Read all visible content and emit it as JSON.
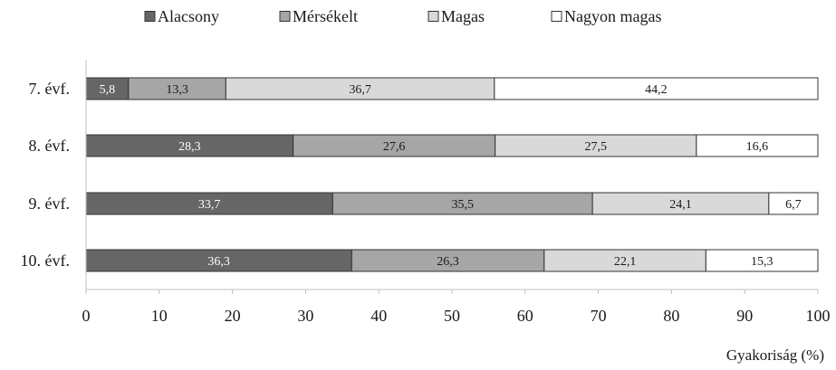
{
  "chart_data": {
    "type": "bar",
    "orientation": "horizontal",
    "stacked": true,
    "title": "",
    "xlabel": "Gyakoriság (%)",
    "ylabel": "",
    "xlim": [
      0,
      100
    ],
    "x_ticks": [
      "0",
      "10",
      "20",
      "30",
      "40",
      "50",
      "60",
      "70",
      "80",
      "90",
      "100"
    ],
    "grid": false,
    "legend_position": "top",
    "categories": [
      "7. évf.",
      "8. évf.",
      "9. évf.",
      "10. évf."
    ],
    "series": [
      {
        "name": "Alacsony",
        "color": "#666666",
        "label_color": "#ffffff",
        "values": [
          5.8,
          28.3,
          33.7,
          36.3
        ],
        "labels": [
          "5,8",
          "28,3",
          "33,7",
          "36,3"
        ]
      },
      {
        "name": "Mérsékelt",
        "color": "#a6a6a6",
        "label_color": "#1a1a1a",
        "values": [
          13.3,
          27.6,
          35.5,
          26.3
        ],
        "labels": [
          "13,3",
          "27,6",
          "35,5",
          "26,3"
        ]
      },
      {
        "name": "Magas",
        "color": "#d9d9d9",
        "label_color": "#1a1a1a",
        "values": [
          36.7,
          27.5,
          24.1,
          22.1
        ],
        "labels": [
          "36,7",
          "27,5",
          "24,1",
          "22,1"
        ]
      },
      {
        "name": "Nagyon magas",
        "color": "#ffffff",
        "label_color": "#1a1a1a",
        "values": [
          44.2,
          16.6,
          6.7,
          15.3
        ],
        "labels": [
          "44,2",
          "16,6",
          "6,7",
          "15,3"
        ]
      }
    ]
  }
}
